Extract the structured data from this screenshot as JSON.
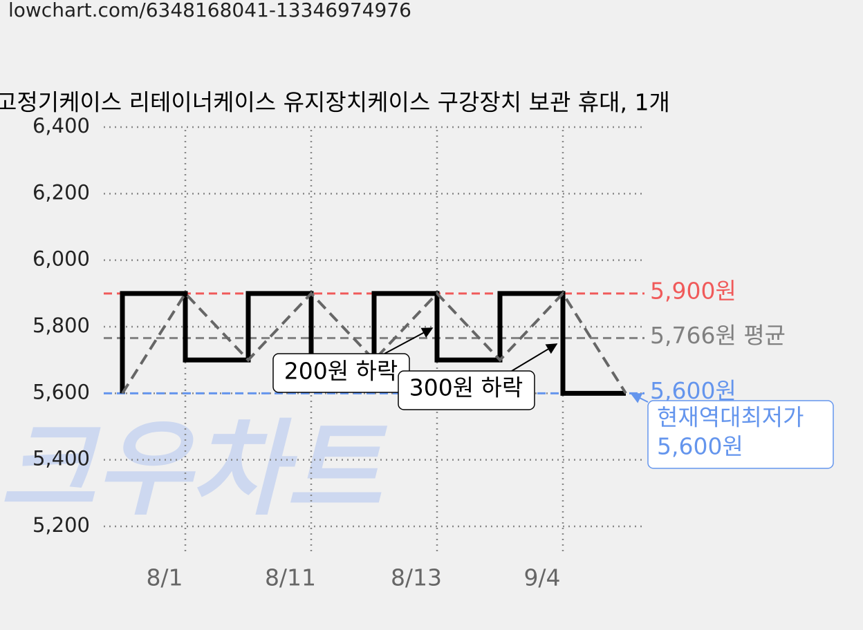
{
  "url": "lowchart.com/6348168041-13346974976",
  "chart_data": {
    "type": "line",
    "title": "고정기케이스 리테이너케이스 유지장치케이스 구강장치 보관 휴대, 1개",
    "watermark": "크우차트",
    "categories": [
      null,
      "8/1",
      null,
      "8/11",
      null,
      "8/13",
      null,
      "9/4",
      null
    ],
    "series": [
      {
        "color": "#000000",
        "values": [
          5600,
          5900,
          5700,
          5900,
          5700,
          5900,
          5700,
          5900,
          5600
        ]
      }
    ],
    "ylim": [
      5200,
      6400
    ],
    "yticks": [
      {
        "value": 5200,
        "label": "5,200"
      },
      {
        "value": 5400,
        "label": "5,400"
      },
      {
        "value": 5600,
        "label": "5,600"
      },
      {
        "value": 5800,
        "label": "5,800"
      },
      {
        "value": 6000,
        "label": "6,000"
      },
      {
        "value": 6200,
        "label": "6,200"
      },
      {
        "value": 6400,
        "label": "6,400"
      }
    ],
    "grid": true,
    "reference_lines": [
      {
        "value": 5900,
        "label": "5,900원",
        "color": "#f05a5a"
      },
      {
        "value": 5766,
        "label": "5,766원 평균",
        "color": "#808080"
      },
      {
        "value": 5600,
        "label": "5,600원",
        "color": "#6495ed"
      }
    ],
    "annotations": [
      {
        "text": "200원 하락"
      },
      {
        "text": "300원 하락"
      },
      {
        "lines": [
          "현재역대최저가",
          "5,600원"
        ],
        "color": "#6495ed"
      }
    ]
  }
}
